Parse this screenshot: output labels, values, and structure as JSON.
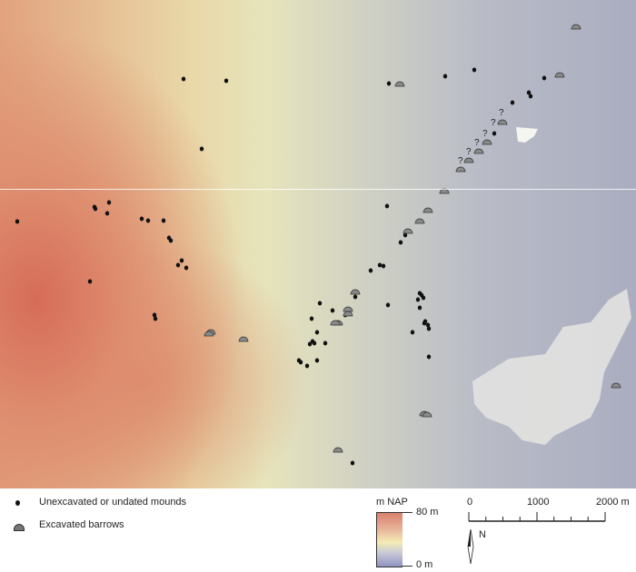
{
  "map": {
    "uncertain_marker": "?",
    "colors": {
      "dot": "#111111",
      "barrow": "#8a8a8a",
      "high": "#d9816e",
      "mid": "#efe8b0",
      "low": "#8e93bf",
      "town": "#e4e4e2"
    }
  },
  "legend": {
    "items": [
      {
        "icon": "dot-icon",
        "label": "Unexcavated or undated mounds"
      },
      {
        "icon": "barrow-icon",
        "label": "Excavated barrows"
      }
    ]
  },
  "elevation_scale": {
    "title": "m NAP",
    "max_label": "80 m",
    "min_label": "0 m"
  },
  "scale_bar": {
    "labels": [
      "0",
      "1000",
      "2000 m"
    ]
  },
  "north_arrow": {
    "label": "N"
  }
}
